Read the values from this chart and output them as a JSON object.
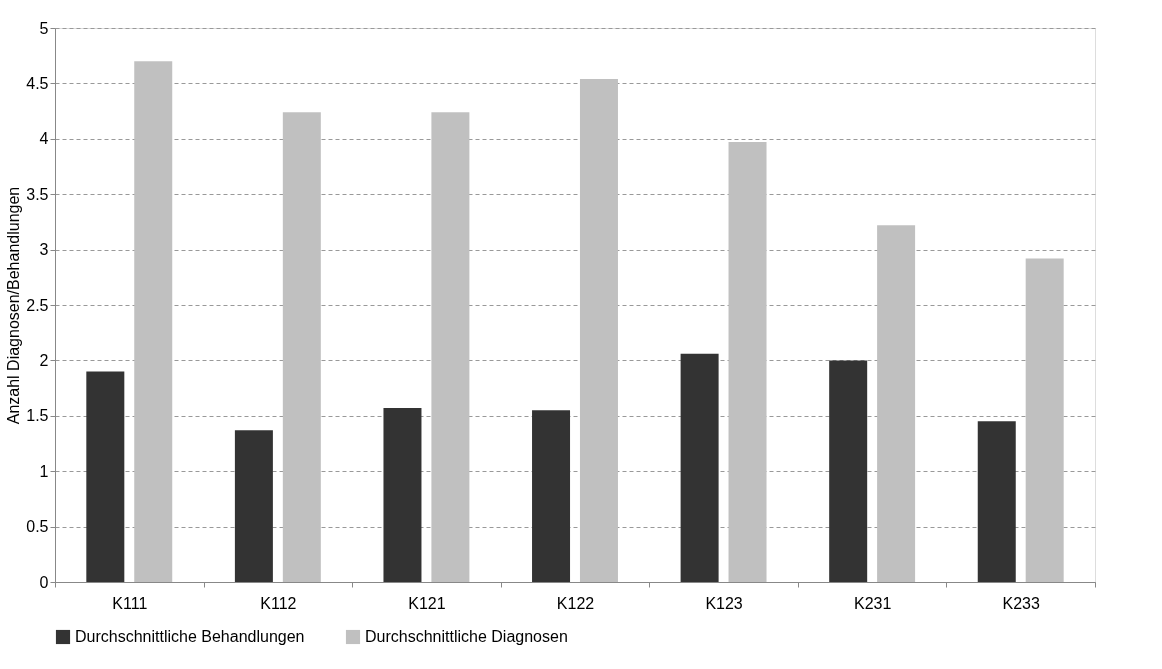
{
  "chart_data": {
    "type": "bar",
    "ylabel": "Anzahl Diagnosen/Behandlungen",
    "categories": [
      "K111",
      "K112",
      "K121",
      "K122",
      "K123",
      "K231",
      "K233"
    ],
    "series": [
      {
        "name": "Durchschnittliche Behandlungen",
        "color": "#333333",
        "values": [
          1.9,
          1.37,
          1.57,
          1.55,
          2.06,
          2.0,
          1.45
        ]
      },
      {
        "name": "Durchschnittliche Diagnosen",
        "color": "#c0c0c0",
        "values": [
          4.7,
          4.24,
          4.24,
          4.54,
          3.97,
          3.22,
          2.92
        ]
      }
    ],
    "ylim": [
      0,
      5
    ],
    "yticks": [
      0,
      0.5,
      1,
      1.5,
      2,
      2.5,
      3,
      3.5,
      4,
      4.5,
      5
    ],
    "grid": "y",
    "legend": "bottom"
  }
}
